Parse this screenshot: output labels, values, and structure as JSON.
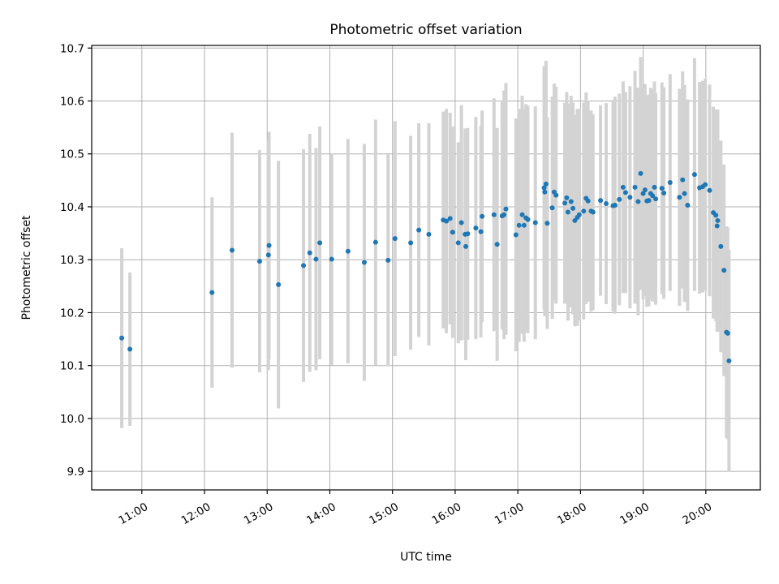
{
  "chart_data": {
    "type": "scatter",
    "title": "Photometric offset variation",
    "xlabel": "UTC time",
    "ylabel": "Photometric offset",
    "grid": true,
    "xlim": [
      10.2,
      20.87
    ],
    "ylim": [
      9.865,
      10.705
    ],
    "x_ticks": [
      {
        "value": 11,
        "label": "11:00"
      },
      {
        "value": 12,
        "label": "12:00"
      },
      {
        "value": 13,
        "label": "13:00"
      },
      {
        "value": 14,
        "label": "14:00"
      },
      {
        "value": 15,
        "label": "15:00"
      },
      {
        "value": 16,
        "label": "16:00"
      },
      {
        "value": 17,
        "label": "17:00"
      },
      {
        "value": 18,
        "label": "18:00"
      },
      {
        "value": 19,
        "label": "19:00"
      },
      {
        "value": 20,
        "label": "20:00"
      }
    ],
    "y_ticks": [
      {
        "value": 9.9,
        "label": "9.9"
      },
      {
        "value": 10.0,
        "label": "10.0"
      },
      {
        "value": 10.1,
        "label": "10.1"
      },
      {
        "value": 10.2,
        "label": "10.2"
      },
      {
        "value": 10.3,
        "label": "10.3"
      },
      {
        "value": 10.4,
        "label": "10.4"
      },
      {
        "value": 10.5,
        "label": "10.5"
      },
      {
        "value": 10.6,
        "label": "10.6"
      },
      {
        "value": 10.7,
        "label": "10.7"
      }
    ],
    "series": [
      {
        "name": "offset",
        "marker_color": "#1f77b4",
        "errorbar_color": "#d3d3d3",
        "points": [
          [
            10.68,
            10.152,
            0.17
          ],
          [
            10.81,
            10.131,
            0.145
          ],
          [
            12.12,
            10.238,
            0.18
          ],
          [
            12.44,
            10.318,
            0.222
          ],
          [
            12.88,
            10.297,
            0.21
          ],
          [
            13.02,
            10.309,
            0.218
          ],
          [
            13.03,
            10.327,
            0.215
          ],
          [
            13.18,
            10.253,
            0.234
          ],
          [
            13.58,
            10.289,
            0.22
          ],
          [
            13.68,
            10.313,
            0.225
          ],
          [
            13.78,
            10.301,
            0.21
          ],
          [
            13.84,
            10.332,
            0.22
          ],
          [
            14.03,
            10.301,
            0.2
          ],
          [
            14.29,
            10.316,
            0.212
          ],
          [
            14.55,
            10.295,
            0.224
          ],
          [
            14.73,
            10.333,
            0.232
          ],
          [
            14.93,
            10.299,
            0.2
          ],
          [
            15.04,
            10.34,
            0.222
          ],
          [
            15.29,
            10.332,
            0.202
          ],
          [
            15.42,
            10.356,
            0.202
          ],
          [
            15.58,
            10.348,
            0.21
          ],
          [
            15.81,
            10.375,
            0.205
          ],
          [
            15.86,
            10.373,
            0.212
          ],
          [
            15.92,
            10.378,
            0.2
          ],
          [
            15.96,
            10.352,
            0.2
          ],
          [
            16.05,
            10.332,
            0.19
          ],
          [
            16.1,
            10.37,
            0.222
          ],
          [
            16.16,
            10.348,
            0.2
          ],
          [
            16.17,
            10.325,
            0.215
          ],
          [
            16.2,
            10.349,
            0.2
          ],
          [
            16.33,
            10.36,
            0.21
          ],
          [
            16.41,
            10.353,
            0.2
          ],
          [
            16.43,
            10.382,
            0.2
          ],
          [
            16.62,
            10.385,
            0.22
          ],
          [
            16.67,
            10.329,
            0.22
          ],
          [
            16.75,
            10.383,
            0.215
          ],
          [
            16.78,
            10.385,
            0.235
          ],
          [
            16.81,
            10.396,
            0.238
          ],
          [
            16.97,
            10.347,
            0.22
          ],
          [
            17.02,
            10.365,
            0.22
          ],
          [
            17.07,
            10.385,
            0.225
          ],
          [
            17.1,
            10.365,
            0.22
          ],
          [
            17.13,
            10.379,
            0.215
          ],
          [
            17.16,
            10.376,
            0.215
          ],
          [
            17.28,
            10.37,
            0.22
          ],
          [
            17.42,
            10.436,
            0.23
          ],
          [
            17.43,
            10.428,
            0.235
          ],
          [
            17.45,
            10.443,
            0.233
          ],
          [
            17.47,
            10.369,
            0.2
          ],
          [
            17.55,
            10.398,
            0.21
          ],
          [
            17.58,
            10.428,
            0.205
          ],
          [
            17.61,
            10.422,
            0.205
          ],
          [
            17.75,
            10.407,
            0.19
          ],
          [
            17.78,
            10.417,
            0.2
          ],
          [
            17.8,
            10.39,
            0.205
          ],
          [
            17.85,
            10.41,
            0.2
          ],
          [
            17.88,
            10.397,
            0.2
          ],
          [
            17.91,
            10.374,
            0.2
          ],
          [
            17.95,
            10.38,
            0.205
          ],
          [
            17.98,
            10.385,
            0.2
          ],
          [
            18.05,
            10.392,
            0.205
          ],
          [
            18.09,
            10.416,
            0.2
          ],
          [
            18.12,
            10.411,
            0.19
          ],
          [
            18.17,
            10.392,
            0.19
          ],
          [
            18.2,
            10.39,
            0.185
          ],
          [
            18.32,
            10.412,
            0.18
          ],
          [
            18.41,
            10.406,
            0.19
          ],
          [
            18.52,
            10.402,
            0.2
          ],
          [
            18.55,
            10.403,
            0.205
          ],
          [
            18.62,
            10.414,
            0.2
          ],
          [
            18.68,
            10.437,
            0.2
          ],
          [
            18.72,
            10.427,
            0.19
          ],
          [
            18.79,
            10.418,
            0.21
          ],
          [
            18.87,
            10.437,
            0.22
          ],
          [
            18.92,
            10.41,
            0.215
          ],
          [
            18.96,
            10.463,
            0.22
          ],
          [
            19.0,
            10.425,
            0.2
          ],
          [
            19.03,
            10.432,
            0.2
          ],
          [
            19.06,
            10.411,
            0.2
          ],
          [
            19.09,
            10.412,
            0.2
          ],
          [
            19.12,
            10.425,
            0.2
          ],
          [
            19.15,
            10.421,
            0.2
          ],
          [
            19.18,
            10.437,
            0.2
          ],
          [
            19.2,
            10.415,
            0.2
          ],
          [
            19.3,
            10.435,
            0.2
          ],
          [
            19.33,
            10.426,
            0.2
          ],
          [
            19.43,
            10.446,
            0.205
          ],
          [
            19.58,
            10.418,
            0.205
          ],
          [
            19.63,
            10.451,
            0.205
          ],
          [
            19.66,
            10.425,
            0.205
          ],
          [
            19.71,
            10.403,
            0.2
          ],
          [
            19.82,
            10.461,
            0.22
          ],
          [
            19.9,
            10.436,
            0.2
          ],
          [
            19.95,
            10.438,
            0.2
          ],
          [
            19.99,
            10.442,
            0.2
          ],
          [
            20.06,
            10.431,
            0.2
          ],
          [
            20.12,
            10.389,
            0.2
          ],
          [
            20.16,
            10.384,
            0.2
          ],
          [
            20.18,
            10.364,
            0.2
          ],
          [
            20.19,
            10.374,
            0.21
          ],
          [
            20.24,
            10.325,
            0.2
          ],
          [
            20.29,
            10.28,
            0.2
          ],
          [
            20.33,
            10.163,
            0.2
          ],
          [
            20.35,
            10.161,
            0.2
          ],
          [
            20.37,
            10.109,
            0.21
          ]
        ]
      }
    ]
  }
}
